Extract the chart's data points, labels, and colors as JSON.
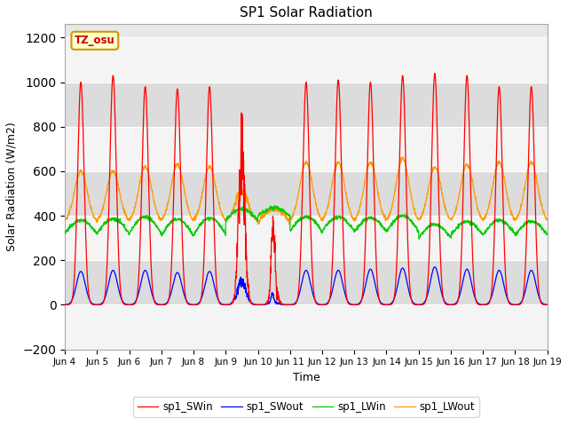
{
  "title": "SP1 Solar Radiation",
  "xlabel": "Time",
  "ylabel": "Solar Radiation (W/m2)",
  "ylim": [
    -200,
    1260
  ],
  "yticks": [
    -200,
    0,
    200,
    400,
    600,
    800,
    1000,
    1200
  ],
  "colors": {
    "sp1_SWin": "#ff0000",
    "sp1_SWout": "#0000ff",
    "sp1_LWin": "#00cc00",
    "sp1_LWout": "#ff9900"
  },
  "legend_labels": [
    "sp1_SWin",
    "sp1_SWout",
    "sp1_LWin",
    "sp1_LWout"
  ],
  "xtick_labels": [
    "Jun 4",
    "Jun 5",
    "Jun 6",
    "Jun 7",
    "Jun 8",
    "Jun 9",
    "Jun 10",
    "Jun 11",
    "Jun 12",
    "Jun 13",
    "Jun 14",
    "Jun 15",
    "Jun 16",
    "Jun 17",
    "Jun 18",
    "Jun 19"
  ],
  "annotation_text": "TZ_osu",
  "annotation_color": "#cc0000",
  "annotation_bg": "#ffffcc",
  "annotation_border": "#cc9900",
  "background_plot": "#e8e8e8",
  "background_outer": "#ffffff",
  "band_color_light": "#f4f4f4",
  "band_color_dark": "#dcdcdc",
  "n_days": 15,
  "points_per_day": 144,
  "SWin_peaks": [
    1000,
    1030,
    980,
    970,
    980,
    870,
    500,
    1000,
    1010,
    1000,
    1030,
    1040,
    1030,
    980,
    980
  ],
  "SWout_peaks": [
    150,
    155,
    155,
    145,
    150,
    130,
    60,
    155,
    155,
    160,
    165,
    170,
    160,
    155,
    155
  ],
  "LWout_peaks": [
    600,
    600,
    620,
    630,
    620,
    540,
    450,
    640,
    640,
    640,
    660,
    620,
    630,
    640,
    640
  ],
  "LWin_bases": [
    320,
    320,
    320,
    310,
    315,
    380,
    400,
    330,
    330,
    330,
    330,
    300,
    310,
    315,
    315
  ],
  "LWin_bumps": [
    60,
    65,
    75,
    75,
    75,
    50,
    35,
    65,
    65,
    60,
    70,
    60,
    65,
    65,
    60
  ]
}
